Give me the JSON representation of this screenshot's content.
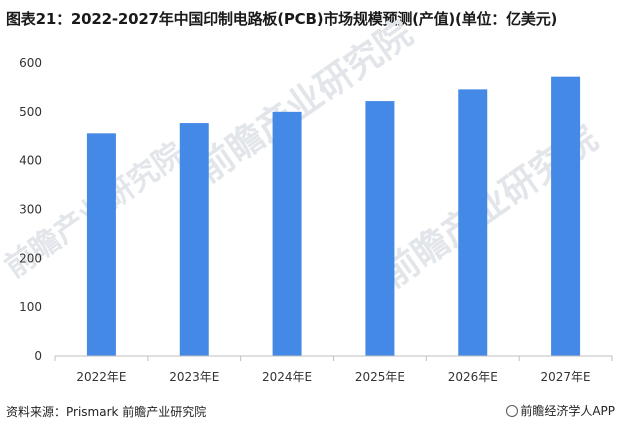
{
  "title": "图表21：2022-2027年中国印制电路板(PCB)市场规模预测(产值)(单位：亿美元)",
  "source": "资料来源：Prismark 前瞻产业研究院",
  "brand": "前瞻经济学人APP",
  "watermark": "前瞻产业研究院",
  "colors": {
    "bar": "#4589e6",
    "axis": "#bfbfbf",
    "text": "#333333"
  },
  "chart_data": {
    "type": "bar",
    "categories": [
      "2022年E",
      "2023年E",
      "2024年E",
      "2025年E",
      "2026年E",
      "2027年E"
    ],
    "values": [
      456,
      477,
      500,
      522,
      546,
      572
    ],
    "title": "图表21：2022-2027年中国印制电路板(PCB)市场规模预测(产值)(单位：亿美元)",
    "xlabel": "",
    "ylabel": "",
    "ylim": [
      0,
      600
    ],
    "yticks": [
      0,
      100,
      200,
      300,
      400,
      500,
      600
    ],
    "grid": false,
    "legend": "none"
  }
}
